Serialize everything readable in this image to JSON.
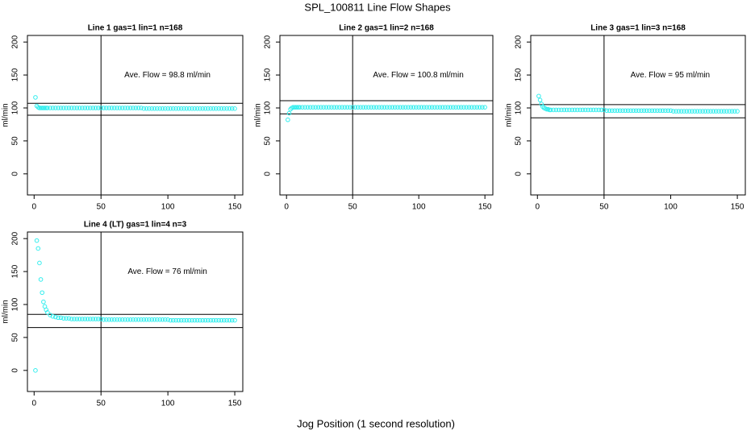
{
  "title": "SPL_100811  Line Flow Shapes",
  "x_label": "Jog Position (1 second resolution)",
  "chart_data": [
    {
      "type": "scatter",
      "title": "Line 1 gas=1 lin=1 n=168",
      "y_label": "ml/min",
      "annotation": "Ave. Flow =  98.8  ml/min",
      "color": "#33eeee",
      "xlim": [
        -5,
        156
      ],
      "ylim": [
        -32,
        210
      ],
      "xticks": [
        0,
        50,
        100,
        150
      ],
      "yticks": [
        0,
        50,
        100,
        150,
        200
      ],
      "hlines": [
        107,
        89
      ],
      "vlines": [
        50
      ],
      "x": [
        1,
        2,
        3,
        4,
        5,
        6,
        7,
        8,
        9,
        10,
        12,
        14,
        16,
        18,
        20,
        22,
        24,
        26,
        28,
        30,
        32,
        34,
        36,
        38,
        40,
        42,
        44,
        46,
        48,
        50,
        52,
        54,
        56,
        58,
        60,
        62,
        64,
        66,
        68,
        70,
        72,
        74,
        76,
        78,
        80,
        82,
        84,
        86,
        88,
        90,
        92,
        94,
        96,
        98,
        100,
        102,
        104,
        106,
        108,
        110,
        112,
        114,
        116,
        118,
        120,
        122,
        124,
        126,
        128,
        130,
        132,
        134,
        136,
        138,
        140,
        142,
        144,
        146,
        148,
        150
      ],
      "values": [
        116,
        103,
        101,
        100,
        100,
        100,
        100,
        100,
        100,
        100,
        100,
        100,
        100,
        100,
        100,
        100,
        100,
        100,
        100,
        100,
        100,
        100,
        100,
        100,
        100,
        100,
        100,
        100,
        100,
        100,
        100,
        100,
        100,
        100,
        100,
        100,
        100,
        100,
        100,
        100,
        100,
        100,
        100,
        100,
        100,
        99,
        99,
        99,
        99,
        99,
        99,
        99,
        99,
        99,
        99,
        99,
        99,
        99,
        99,
        99,
        99,
        99,
        99,
        99,
        99,
        99,
        99,
        99,
        99,
        99,
        99,
        99,
        99,
        99,
        99,
        99,
        99,
        99,
        99,
        99
      ]
    },
    {
      "type": "scatter",
      "title": "Line 2 gas=1 lin=2 n=168",
      "y_label": "ml/min",
      "annotation": "Ave. Flow =  100.8  ml/min",
      "color": "#33eeee",
      "xlim": [
        -5,
        156
      ],
      "ylim": [
        -32,
        210
      ],
      "xticks": [
        0,
        50,
        100,
        150
      ],
      "yticks": [
        0,
        50,
        100,
        150,
        200
      ],
      "hlines": [
        111,
        91
      ],
      "vlines": [
        50
      ],
      "x": [
        1,
        2,
        3,
        4,
        5,
        6,
        7,
        8,
        9,
        10,
        12,
        14,
        16,
        18,
        20,
        22,
        24,
        26,
        28,
        30,
        32,
        34,
        36,
        38,
        40,
        42,
        44,
        46,
        48,
        50,
        52,
        54,
        56,
        58,
        60,
        62,
        64,
        66,
        68,
        70,
        72,
        74,
        76,
        78,
        80,
        82,
        84,
        86,
        88,
        90,
        92,
        94,
        96,
        98,
        100,
        102,
        104,
        106,
        108,
        110,
        112,
        114,
        116,
        118,
        120,
        122,
        124,
        126,
        128,
        130,
        132,
        134,
        136,
        138,
        140,
        142,
        144,
        146,
        148,
        150
      ],
      "values": [
        82,
        92,
        98,
        100,
        101,
        101,
        101,
        101,
        101,
        101,
        101,
        101,
        101,
        101,
        101,
        101,
        101,
        101,
        101,
        101,
        101,
        101,
        101,
        101,
        101,
        101,
        101,
        101,
        101,
        101,
        101,
        101,
        101,
        101,
        101,
        101,
        101,
        101,
        101,
        101,
        101,
        101,
        101,
        101,
        101,
        101,
        101,
        101,
        101,
        101,
        101,
        101,
        101,
        101,
        101,
        101,
        101,
        101,
        101,
        101,
        101,
        101,
        101,
        101,
        101,
        101,
        101,
        101,
        101,
        101,
        101,
        101,
        101,
        101,
        101,
        101,
        101,
        101,
        101,
        101
      ]
    },
    {
      "type": "scatter",
      "title": "Line 3 gas=1 lin=3 n=168",
      "y_label": "ml/min",
      "annotation": "Ave. Flow =  95  ml/min",
      "color": "#33eeee",
      "xlim": [
        -5,
        156
      ],
      "ylim": [
        -32,
        210
      ],
      "xticks": [
        0,
        50,
        100,
        150
      ],
      "yticks": [
        0,
        50,
        100,
        150,
        200
      ],
      "hlines": [
        105,
        85
      ],
      "vlines": [
        50
      ],
      "x": [
        1,
        2,
        3,
        4,
        5,
        6,
        7,
        8,
        9,
        10,
        12,
        14,
        16,
        18,
        20,
        22,
        24,
        26,
        28,
        30,
        32,
        34,
        36,
        38,
        40,
        42,
        44,
        46,
        48,
        50,
        52,
        54,
        56,
        58,
        60,
        62,
        64,
        66,
        68,
        70,
        72,
        74,
        76,
        78,
        80,
        82,
        84,
        86,
        88,
        90,
        92,
        94,
        96,
        98,
        100,
        102,
        104,
        106,
        108,
        110,
        112,
        114,
        116,
        118,
        120,
        122,
        124,
        126,
        128,
        130,
        132,
        134,
        136,
        138,
        140,
        142,
        144,
        146,
        148,
        150
      ],
      "values": [
        118,
        112,
        106,
        102,
        100,
        99,
        98,
        98,
        97,
        97,
        97,
        97,
        97,
        97,
        97,
        97,
        97,
        97,
        97,
        97,
        97,
        97,
        97,
        97,
        97,
        97,
        97,
        97,
        97,
        97,
        96,
        96,
        96,
        96,
        96,
        96,
        96,
        96,
        96,
        96,
        96,
        96,
        96,
        96,
        96,
        96,
        96,
        96,
        96,
        96,
        96,
        96,
        96,
        96,
        96,
        95,
        95,
        95,
        95,
        95,
        95,
        95,
        95,
        95,
        95,
        95,
        95,
        95,
        95,
        95,
        95,
        95,
        95,
        95,
        95,
        95,
        95,
        95,
        95,
        95
      ]
    },
    {
      "type": "scatter",
      "title": "Line 4 (LT) gas=1 lin=4 n=3",
      "y_label": "ml/min",
      "annotation": "Ave. Flow =  76  ml/min",
      "color": "#33eeee",
      "xlim": [
        -5,
        156
      ],
      "ylim": [
        -32,
        210
      ],
      "xticks": [
        0,
        50,
        100,
        150
      ],
      "yticks": [
        0,
        50,
        100,
        150,
        200
      ],
      "hlines": [
        85,
        65
      ],
      "vlines": [
        50
      ],
      "x": [
        1,
        2,
        3,
        4,
        5,
        6,
        7,
        8,
        9,
        10,
        12,
        14,
        16,
        18,
        20,
        22,
        24,
        26,
        28,
        30,
        32,
        34,
        36,
        38,
        40,
        42,
        44,
        46,
        48,
        50,
        52,
        54,
        56,
        58,
        60,
        62,
        64,
        66,
        68,
        70,
        72,
        74,
        76,
        78,
        80,
        82,
        84,
        86,
        88,
        90,
        92,
        94,
        96,
        98,
        100,
        102,
        104,
        106,
        108,
        110,
        112,
        114,
        116,
        118,
        120,
        122,
        124,
        126,
        128,
        130,
        132,
        134,
        136,
        138,
        140,
        142,
        144,
        146,
        148,
        150
      ],
      "values": [
        0,
        197,
        185,
        163,
        138,
        118,
        104,
        97,
        92,
        88,
        84,
        82,
        81,
        80,
        80,
        79,
        79,
        79,
        78,
        78,
        78,
        78,
        78,
        78,
        78,
        78,
        78,
        78,
        78,
        78,
        77,
        77,
        77,
        77,
        77,
        77,
        77,
        77,
        77,
        77,
        77,
        77,
        77,
        77,
        77,
        77,
        77,
        77,
        77,
        77,
        77,
        77,
        77,
        77,
        77,
        76,
        76,
        76,
        76,
        76,
        76,
        76,
        76,
        76,
        76,
        76,
        76,
        76,
        76,
        76,
        76,
        76,
        76,
        76,
        76,
        76,
        76,
        76,
        76,
        76
      ]
    }
  ]
}
